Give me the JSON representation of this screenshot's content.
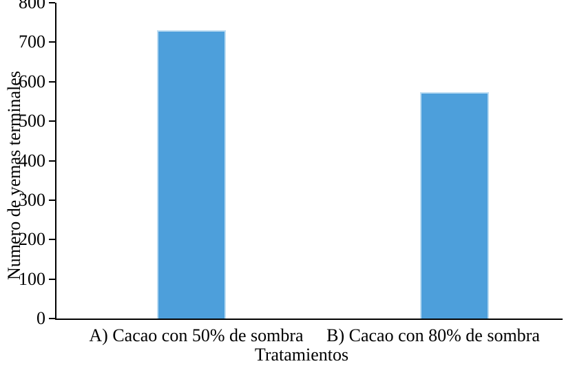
{
  "chart_data": {
    "type": "bar",
    "title": "",
    "categories": [
      "A) Cacao con 50% de sombra",
      "B) Cacao con 80% de sombra"
    ],
    "values": [
      730,
      573
    ],
    "xlabel": "Tratamientos",
    "ylabel": "Numero de yemas terminales",
    "ylim": [
      0,
      800
    ],
    "ytick_step": 100,
    "ytick_labels": [
      "0",
      "100",
      "200",
      "300",
      "400",
      "500",
      "600",
      "700",
      "800"
    ],
    "grid": "off",
    "legend": "none",
    "bar_color": "#4d9fdb",
    "bar_edge_color": "#bcdcf2",
    "axis_color": "#000000",
    "text_color": "#000000"
  }
}
